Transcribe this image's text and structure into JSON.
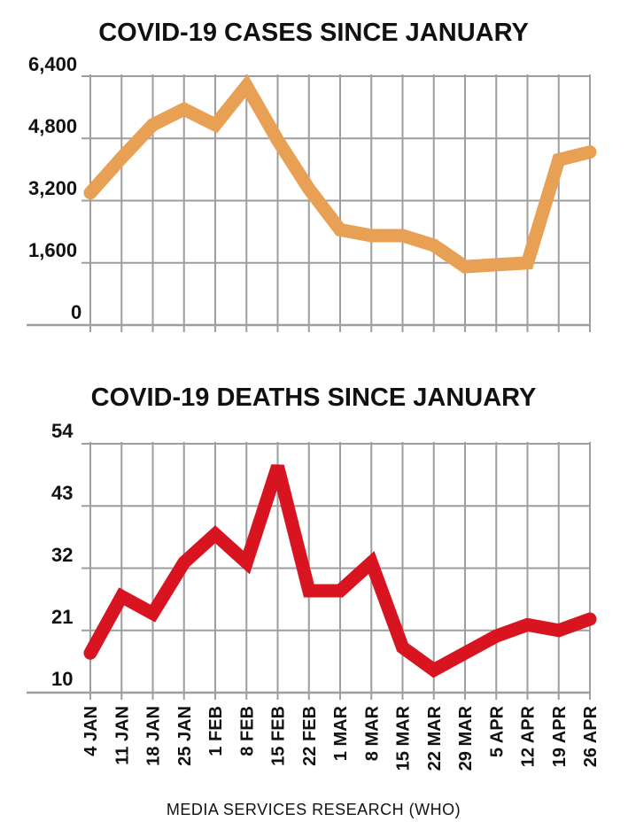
{
  "source": "MEDIA SERVICES RESEARCH (WHO)",
  "colors": {
    "cases": "#E8A055",
    "deaths": "#D7141F",
    "grid": "#9E9E9E",
    "text": "#111111"
  },
  "chart_data": [
    {
      "type": "line",
      "title": "COVID-19 CASES SINCE JANUARY",
      "categories": [
        "4 JAN",
        "11 JAN",
        "18 JAN",
        "25 JAN",
        "1 FEB",
        "8 FEB",
        "15 FEB",
        "22 FEB",
        "1 MAR",
        "8 MAR",
        "15 MAR",
        "22 MAR",
        "29 MAR",
        "5 APR",
        "12 APR",
        "19 APR",
        "26 APR"
      ],
      "yticks": [
        "6,400",
        "4,800",
        "3,200",
        "1,600",
        "0"
      ],
      "ylim": [
        0,
        6400
      ],
      "grid": true,
      "series": [
        {
          "values": [
            3400,
            4300,
            5150,
            5550,
            5150,
            6150,
            4750,
            3500,
            2450,
            2300,
            2300,
            2050,
            1500,
            1550,
            1600,
            4250,
            4450
          ]
        }
      ]
    },
    {
      "type": "line",
      "title": "COVID-19 DEATHS SINCE JANUARY",
      "categories": [
        "4 JAN",
        "11 JAN",
        "18 JAN",
        "25 JAN",
        "1 FEB",
        "8 FEB",
        "15 FEB",
        "22 FEB",
        "1 MAR",
        "8 MAR",
        "15 MAR",
        "22 MAR",
        "29 MAR",
        "5 APR",
        "12 APR",
        "19 APR",
        "26 APR"
      ],
      "yticks": [
        "54",
        "43",
        "32",
        "21",
        "10"
      ],
      "ylim": [
        10,
        54
      ],
      "grid": true,
      "series": [
        {
          "values": [
            17,
            27,
            24,
            33,
            38,
            33,
            50,
            28,
            28,
            33,
            18,
            14,
            17,
            20,
            22,
            21,
            23
          ]
        }
      ]
    }
  ]
}
